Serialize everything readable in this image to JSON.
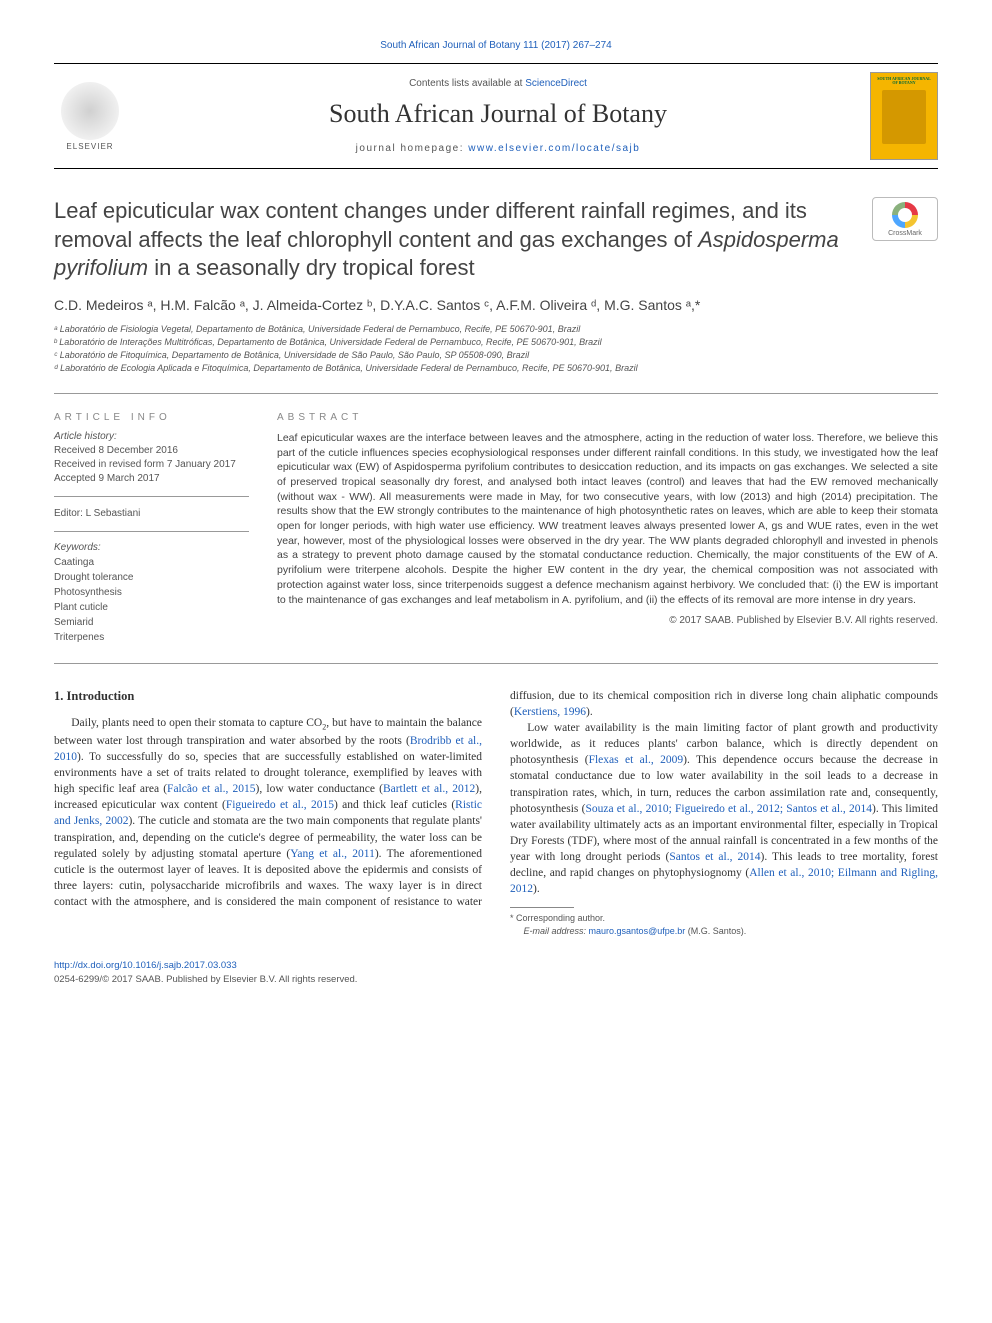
{
  "top_citation": "South African Journal of Botany 111 (2017) 267–274",
  "masthead": {
    "contents_prefix": "Contents lists available at ",
    "contents_link": "ScienceDirect",
    "journal_name": "South African Journal of Botany",
    "homepage_prefix": "journal homepage: ",
    "homepage_url": "www.elsevier.com/locate/sajb",
    "elsevier_label": "ELSEVIER",
    "cover_label": "SOUTH AFRICAN JOURNAL OF BOTANY"
  },
  "crossmark_label": "CrossMark",
  "title_parts": {
    "p1": "Leaf epicuticular wax content changes under different rainfall regimes, and its removal affects the leaf chlorophyll content and gas exchanges of ",
    "italic": "Aspidosperma pyrifolium",
    "p2": " in a seasonally dry tropical forest"
  },
  "authors_line": "C.D. Medeiros ᵃ, H.M. Falcão ᵃ, J. Almeida-Cortez ᵇ, D.Y.A.C. Santos ᶜ, A.F.M. Oliveira ᵈ, M.G. Santos ᵃ,*",
  "affiliations": [
    "ᵃ Laboratório de Fisiologia Vegetal, Departamento de Botânica, Universidade Federal de Pernambuco, Recife, PE 50670-901, Brazil",
    "ᵇ Laboratório de Interações Multitróficas, Departamento de Botânica, Universidade Federal de Pernambuco, Recife, PE 50670-901, Brazil",
    "ᶜ Laboratório de Fitoquímica, Departamento de Botânica, Universidade de São Paulo, São Paulo, SP 05508-090, Brazil",
    "ᵈ Laboratório de Ecologia Aplicada e Fitoquímica, Departamento de Botânica, Universidade Federal de Pernambuco, Recife, PE 50670-901, Brazil"
  ],
  "labels": {
    "article_info": "ARTICLE INFO",
    "abstract": "ABSTRACT",
    "history": "Article history:",
    "editor": "Editor: L Sebastiani",
    "keywords": "Keywords:"
  },
  "history": {
    "received": "Received 8 December 2016",
    "revised": "Received in revised form 7 January 2017",
    "accepted": "Accepted 9 March 2017"
  },
  "keywords": [
    "Caatinga",
    "Drought tolerance",
    "Photosynthesis",
    "Plant cuticle",
    "Semiarid",
    "Triterpenes"
  ],
  "abstract": "Leaf epicuticular waxes are the interface between leaves and the atmosphere, acting in the reduction of water loss. Therefore, we believe this part of the cuticle influences species ecophysiological responses under different rainfall conditions. In this study, we investigated how the leaf epicuticular wax (EW) of Aspidosperma pyrifolium contributes to desiccation reduction, and its impacts on gas exchanges. We selected a site of preserved tropical seasonally dry forest, and analysed both intact leaves (control) and leaves that had the EW removed mechanically (without wax - WW). All measurements were made in May, for two consecutive years, with low (2013) and high (2014) precipitation. The results show that the EW strongly contributes to the maintenance of high photosynthetic rates on leaves, which are able to keep their stomata open for longer periods, with high water use efficiency. WW treatment leaves always presented lower A, gs and WUE rates, even in the wet year, however, most of the physiological losses were observed in the dry year. The WW plants degraded chlorophyll and invested in phenols as a strategy to prevent photo damage caused by the stomatal conductance reduction. Chemically, the major constituents of the EW of A. pyrifolium were triterpene alcohols. Despite the higher EW content in the dry year, the chemical composition was not associated with protection against water loss, since triterpenoids suggest a defence mechanism against herbivory. We concluded that: (i) the EW is important to the maintenance of gas exchanges and leaf metabolism in A. pyrifolium, and (ii) the effects of its removal are more intense in dry years.",
  "copyright": "© 2017 SAAB. Published by Elsevier B.V. All rights reserved.",
  "intro_heading": "1. Introduction",
  "intro_para1_a": "Daily, plants need to open their stomata to capture CO",
  "intro_para1_b": ", but have to maintain the balance between water lost through transpiration and water absorbed by the roots (",
  "cite1": "Brodribb et al., 2010",
  "intro_para1_c": "). To successfully do so, species that are successfully established on water-limited environments have a set of traits related to drought tolerance, exemplified by leaves with high specific leaf area (",
  "cite2": "Falcão et al., 2015",
  "intro_para1_d": "), low water conductance (",
  "cite3": "Bartlett et al., 2012",
  "intro_para1_e": "), increased epicuticular wax content (",
  "cite4": "Figueiredo et al., 2015",
  "intro_para1_f": ") and thick leaf cuticles (",
  "cite5": "Ristic and Jenks, 2002",
  "intro_para1_g": "). The cuticle and stomata are the two main components that regulate plants' transpiration, and, depending on the cuticle's degree of permeability, the water loss can be regulated solely by adjusting stomatal aperture (",
  "cite6": "Yang et al., 2011",
  "intro_para1_h": "). The aforementioned cuticle is the outermost layer of leaves. It is deposited above the epidermis and consists of three layers: cutin, polysaccharide microfibrils and waxes. The waxy layer is in direct contact with the atmosphere, and is considered the main component of resistance to water diffusion, due to its chemical composition rich in diverse long chain aliphatic compounds (",
  "cite7": "Kerstiens, 1996",
  "intro_para1_i": ").",
  "intro_para2_a": "Low water availability is the main limiting factor of plant growth and productivity worldwide, as it reduces plants' carbon balance, which is directly dependent on photosynthesis (",
  "cite8": "Flexas et al., 2009",
  "intro_para2_b": "). This dependence occurs because the decrease in stomatal conductance due to low water availability in the soil leads to a decrease in transpiration rates, which, in turn, reduces the carbon assimilation rate and, consequently, photosynthesis (",
  "cite9": "Souza et al., 2010; Figueiredo et al., 2012; Santos et al., 2014",
  "intro_para2_c": "). This limited water availability ultimately acts as an important environmental filter, especially in Tropical Dry Forests (TDF), where most of the annual rainfall is concentrated in a few months of the year with long drought periods (",
  "cite10": "Santos et al., 2014",
  "intro_para2_d": "). This leads to tree mortality, forest decline, and rapid changes on phytophysiognomy (",
  "cite11": "Allen et al., 2010; Eilmann and Rigling, 2012",
  "intro_para2_e": ").",
  "footnote": {
    "star": "* Corresponding author.",
    "email_label": "E-mail address: ",
    "email": "mauro.gsantos@ufpe.br",
    "email_name": " (M.G. Santos)."
  },
  "footer": {
    "doi": "http://dx.doi.org/10.1016/j.sajb.2017.03.033",
    "issn": "0254-6299/© 2017 SAAB. Published by Elsevier B.V. All rights reserved."
  },
  "colors": {
    "link": "#2060bb",
    "text": "#333333",
    "muted": "#555555",
    "cover_bg": "#f5b500"
  }
}
